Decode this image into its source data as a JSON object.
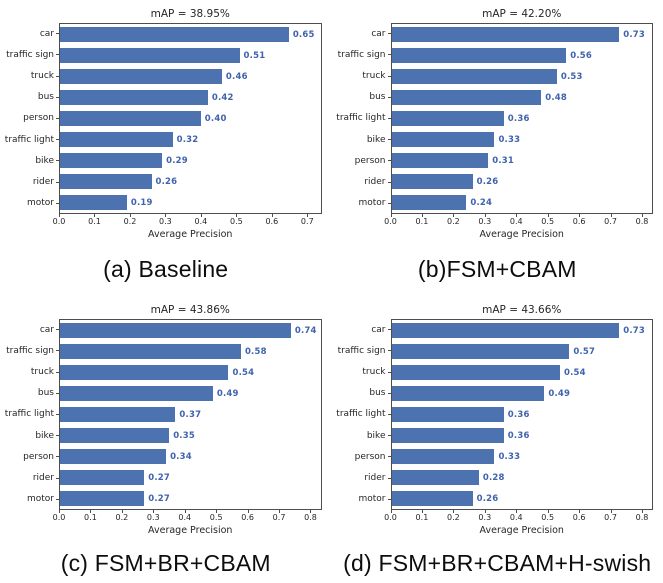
{
  "styles": {
    "bar_color": "#4c72b0",
    "value_label_color": "#3f63ad",
    "spine_color": "#4d4d4d"
  },
  "chart_data": [
    {
      "type": "bar",
      "orientation": "horizontal",
      "panel": "a",
      "title": "mAP = 38.95%",
      "caption": "(a) Baseline",
      "categories": [
        "car",
        "traffic sign",
        "truck",
        "bus",
        "person",
        "traffic light",
        "bike",
        "rider",
        "motor"
      ],
      "values": [
        0.65,
        0.51,
        0.46,
        0.42,
        0.4,
        0.32,
        0.29,
        0.26,
        0.19
      ],
      "value_labels": [
        "0.65",
        "0.51",
        "0.46",
        "0.42",
        "0.40",
        "0.32",
        "0.29",
        "0.26",
        "0.19"
      ],
      "xlabel": "Average Precision",
      "xlim": [
        0,
        0.74
      ],
      "xticks": [
        0.0,
        0.1,
        0.2,
        0.3,
        0.4,
        0.5,
        0.6,
        0.7
      ],
      "xtick_labels": [
        "0.0",
        "0.1",
        "0.2",
        "0.3",
        "0.4",
        "0.5",
        "0.6",
        "0.7"
      ],
      "grid": false,
      "legend": false
    },
    {
      "type": "bar",
      "orientation": "horizontal",
      "panel": "b",
      "title": "mAP = 42.20%",
      "caption": "(b)FSM+CBAM",
      "categories": [
        "car",
        "traffic sign",
        "truck",
        "bus",
        "traffic light",
        "bike",
        "person",
        "rider",
        "motor"
      ],
      "values": [
        0.73,
        0.56,
        0.53,
        0.48,
        0.36,
        0.33,
        0.31,
        0.26,
        0.24
      ],
      "value_labels": [
        "0.73",
        "0.56",
        "0.53",
        "0.48",
        "0.36",
        "0.33",
        "0.31",
        "0.26",
        "0.24"
      ],
      "xlabel": "Average Precision",
      "xlim": [
        0,
        0.835
      ],
      "xticks": [
        0.0,
        0.1,
        0.2,
        0.3,
        0.4,
        0.5,
        0.6,
        0.7,
        0.8
      ],
      "xtick_labels": [
        "0.0",
        "0.1",
        "0.2",
        "0.3",
        "0.4",
        "0.5",
        "0.6",
        "0.7",
        "0.8"
      ],
      "grid": false,
      "legend": false
    },
    {
      "type": "bar",
      "orientation": "horizontal",
      "panel": "c",
      "title": "mAP = 43.86%",
      "caption": "(c) FSM+BR+CBAM",
      "categories": [
        "car",
        "traffic sign",
        "truck",
        "bus",
        "traffic light",
        "bike",
        "person",
        "rider",
        "motor"
      ],
      "values": [
        0.74,
        0.58,
        0.54,
        0.49,
        0.37,
        0.35,
        0.34,
        0.27,
        0.27
      ],
      "value_labels": [
        "0.74",
        "0.58",
        "0.54",
        "0.49",
        "0.37",
        "0.35",
        "0.34",
        "0.27",
        "0.27"
      ],
      "xlabel": "Average Precision",
      "xlim": [
        0,
        0.835
      ],
      "xticks": [
        0.0,
        0.1,
        0.2,
        0.3,
        0.4,
        0.5,
        0.6,
        0.7,
        0.8
      ],
      "xtick_labels": [
        "0.0",
        "0.1",
        "0.2",
        "0.3",
        "0.4",
        "0.5",
        "0.6",
        "0.7",
        "0.8"
      ],
      "grid": false,
      "legend": false
    },
    {
      "type": "bar",
      "orientation": "horizontal",
      "panel": "d",
      "title": "mAP = 43.66%",
      "caption": "(d) FSM+BR+CBAM+H-swish",
      "categories": [
        "car",
        "traffic sign",
        "truck",
        "bus",
        "traffic light",
        "bike",
        "person",
        "rider",
        "motor"
      ],
      "values": [
        0.73,
        0.57,
        0.54,
        0.49,
        0.36,
        0.36,
        0.33,
        0.28,
        0.26
      ],
      "value_labels": [
        "0.73",
        "0.57",
        "0.54",
        "0.49",
        "0.36",
        "0.36",
        "0.33",
        "0.28",
        "0.26"
      ],
      "xlabel": "Average Precision",
      "xlim": [
        0,
        0.835
      ],
      "xticks": [
        0.0,
        0.1,
        0.2,
        0.3,
        0.4,
        0.5,
        0.6,
        0.7,
        0.8
      ],
      "xtick_labels": [
        "0.0",
        "0.1",
        "0.2",
        "0.3",
        "0.4",
        "0.5",
        "0.6",
        "0.7",
        "0.8"
      ],
      "grid": false,
      "legend": false
    }
  ]
}
